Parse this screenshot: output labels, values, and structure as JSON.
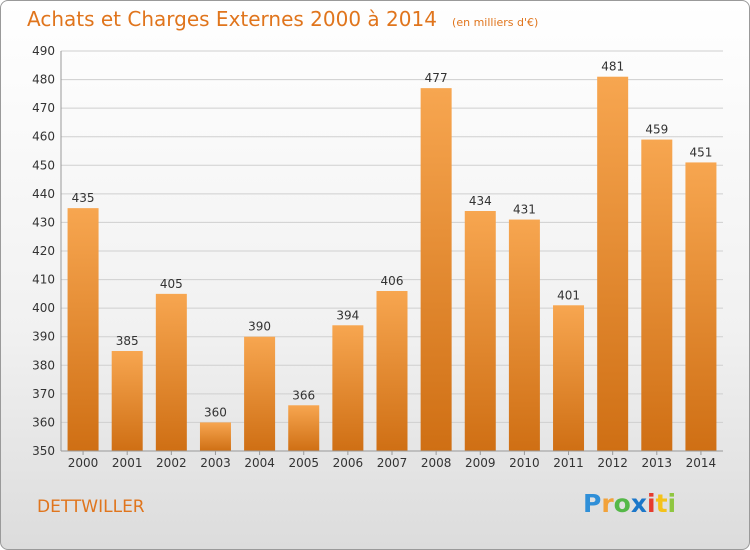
{
  "title": "Achats et Charges Externes 2000 à 2014",
  "subtitle": "(en milliers d'€)",
  "commune": "DETTWILLER",
  "logo": {
    "letters": [
      "P",
      "r",
      "o",
      "x",
      "i",
      "t",
      "i"
    ],
    "colors": [
      "#2f8fd8",
      "#f2a23a",
      "#55b848",
      "#1c77c9",
      "#e63c2e",
      "#f4c21a",
      "#8fc640"
    ]
  },
  "colors": {
    "bar_light": "#f7a650",
    "bar_dark": "#cf6f14",
    "text": "#e0751d"
  },
  "chart_data": {
    "type": "bar",
    "title": "Achats et Charges Externes 2000 à 2014",
    "subtitle": "(en milliers d'€)",
    "xlabel": "",
    "ylabel": "",
    "ylim": [
      350,
      490
    ],
    "yticks": [
      350,
      360,
      370,
      380,
      390,
      400,
      410,
      420,
      430,
      440,
      450,
      460,
      470,
      480,
      490
    ],
    "grid": true,
    "categories": [
      "2000",
      "2001",
      "2002",
      "2003",
      "2004",
      "2005",
      "2006",
      "2007",
      "2008",
      "2009",
      "2010",
      "2011",
      "2012",
      "2013",
      "2014"
    ],
    "values": [
      435,
      385,
      405,
      360,
      390,
      366,
      394,
      406,
      477,
      434,
      431,
      401,
      481,
      459,
      451
    ]
  }
}
